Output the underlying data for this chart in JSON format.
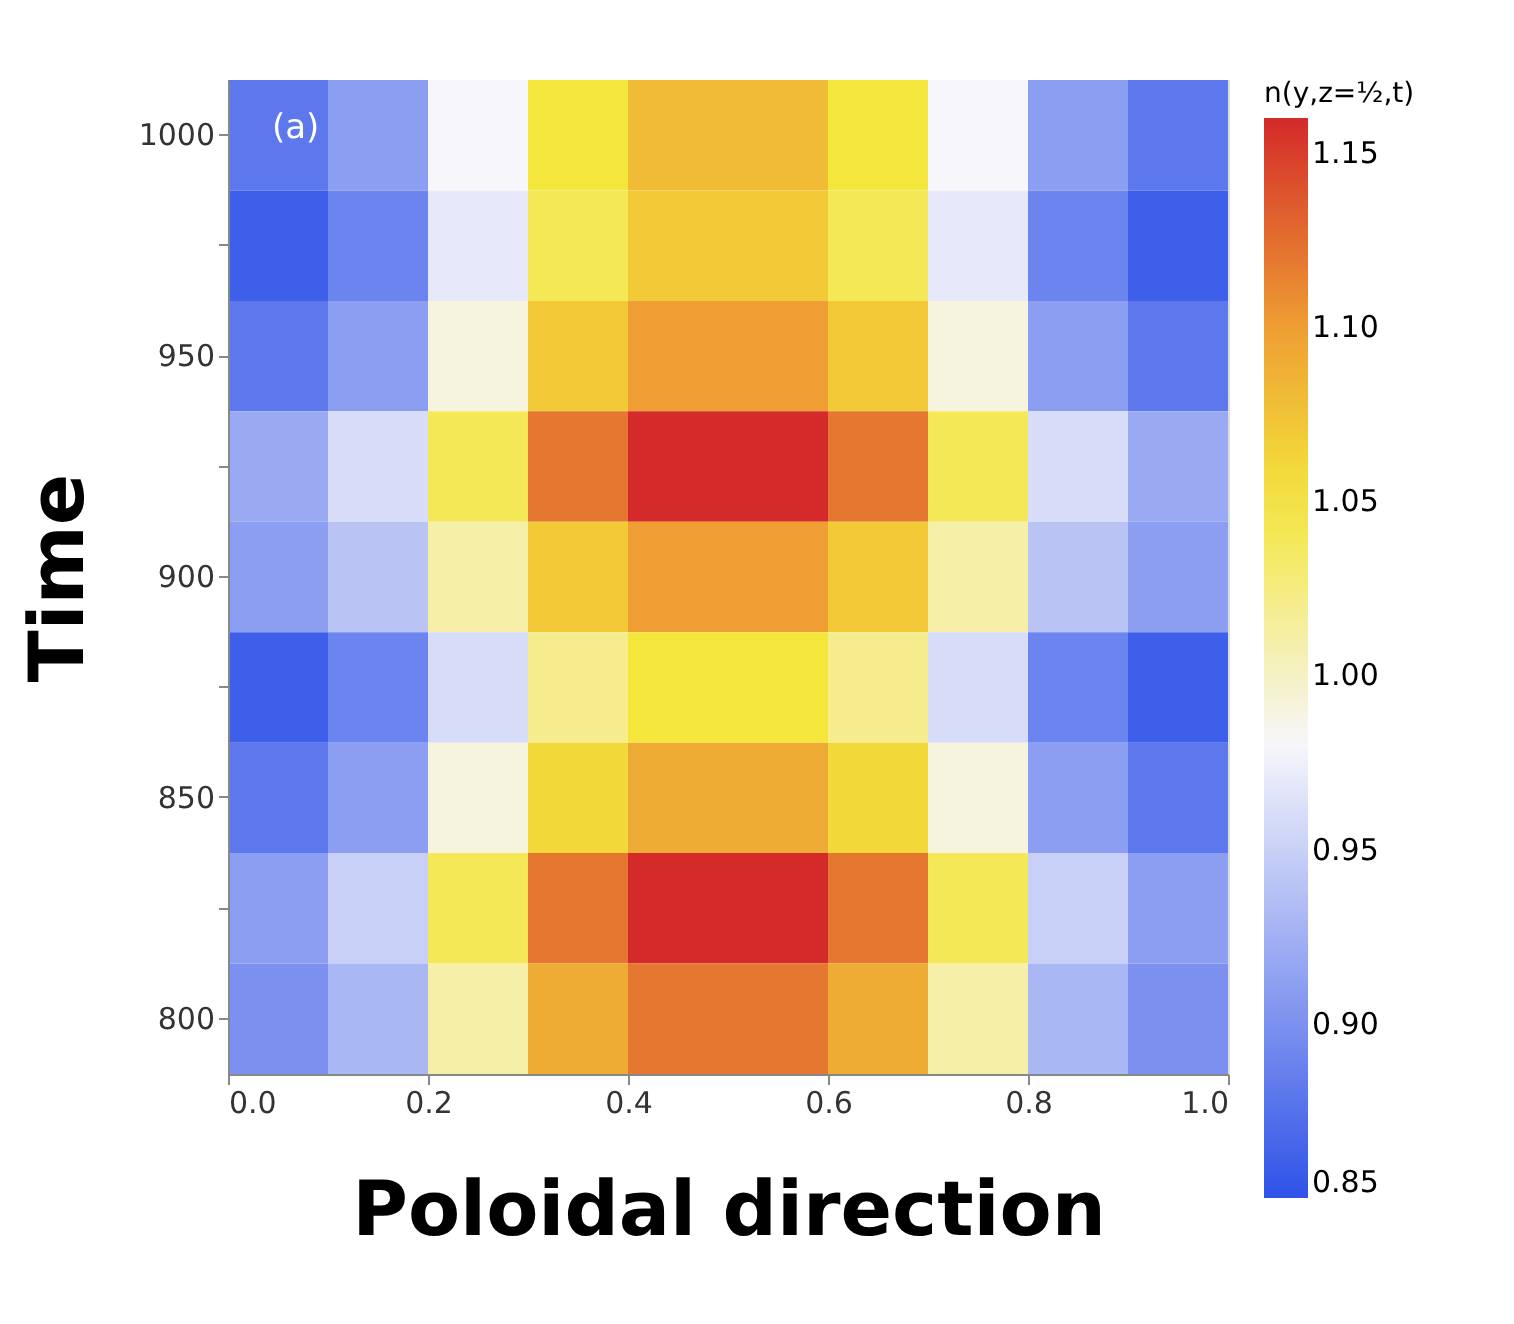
{
  "chart_data": {
    "type": "heatmap",
    "xlabel": "Poloidal direction",
    "ylabel": "Time",
    "clabel": "n(y,z=½,t)",
    "annotations": [
      "(a)"
    ],
    "x": [
      0.05,
      0.15,
      0.25,
      0.35,
      0.45,
      0.55,
      0.65,
      0.75,
      0.85,
      0.95
    ],
    "y_categories": [
      "1000",
      null,
      "950",
      null,
      "900",
      null,
      "850",
      null,
      "800"
    ],
    "cells": [
      [
        0.88,
        0.91,
        0.98,
        1.05,
        1.08,
        1.08,
        1.05,
        0.98,
        0.91,
        0.88
      ],
      [
        0.86,
        0.89,
        0.97,
        1.04,
        1.07,
        1.07,
        1.04,
        0.97,
        0.89,
        0.86
      ],
      [
        0.88,
        0.91,
        0.99,
        1.07,
        1.1,
        1.1,
        1.07,
        0.99,
        0.91,
        0.88
      ],
      [
        0.92,
        0.96,
        1.04,
        1.12,
        1.16,
        1.16,
        1.12,
        1.04,
        0.96,
        0.92
      ],
      [
        0.91,
        0.94,
        1.01,
        1.07,
        1.1,
        1.1,
        1.07,
        1.01,
        0.94,
        0.91
      ],
      [
        0.86,
        0.89,
        0.96,
        1.02,
        1.05,
        1.05,
        1.02,
        0.96,
        0.89,
        0.86
      ],
      [
        0.88,
        0.91,
        0.99,
        1.06,
        1.09,
        1.09,
        1.06,
        0.99,
        0.91,
        0.88
      ],
      [
        0.91,
        0.95,
        1.04,
        1.12,
        1.16,
        1.16,
        1.12,
        1.04,
        0.95,
        0.91
      ],
      [
        0.9,
        0.93,
        1.01,
        1.09,
        1.12,
        1.12,
        1.09,
        1.01,
        0.93,
        0.9
      ]
    ],
    "xlim": [
      0,
      1
    ],
    "xticks": [
      {
        "value": 0,
        "label": "0.0"
      },
      0.2,
      0.4,
      0.6,
      0.8,
      {
        "value": 1,
        "label": "1.0"
      }
    ],
    "clim": [
      0.85,
      1.16
    ],
    "cticks": [
      0.85,
      {
        "value": 0.9,
        "label": "0.90"
      },
      0.95,
      {
        "value": 1.0,
        "label": "1.00"
      },
      1.05,
      {
        "value": 1.1,
        "label": "1.10"
      },
      1.15
    ]
  }
}
